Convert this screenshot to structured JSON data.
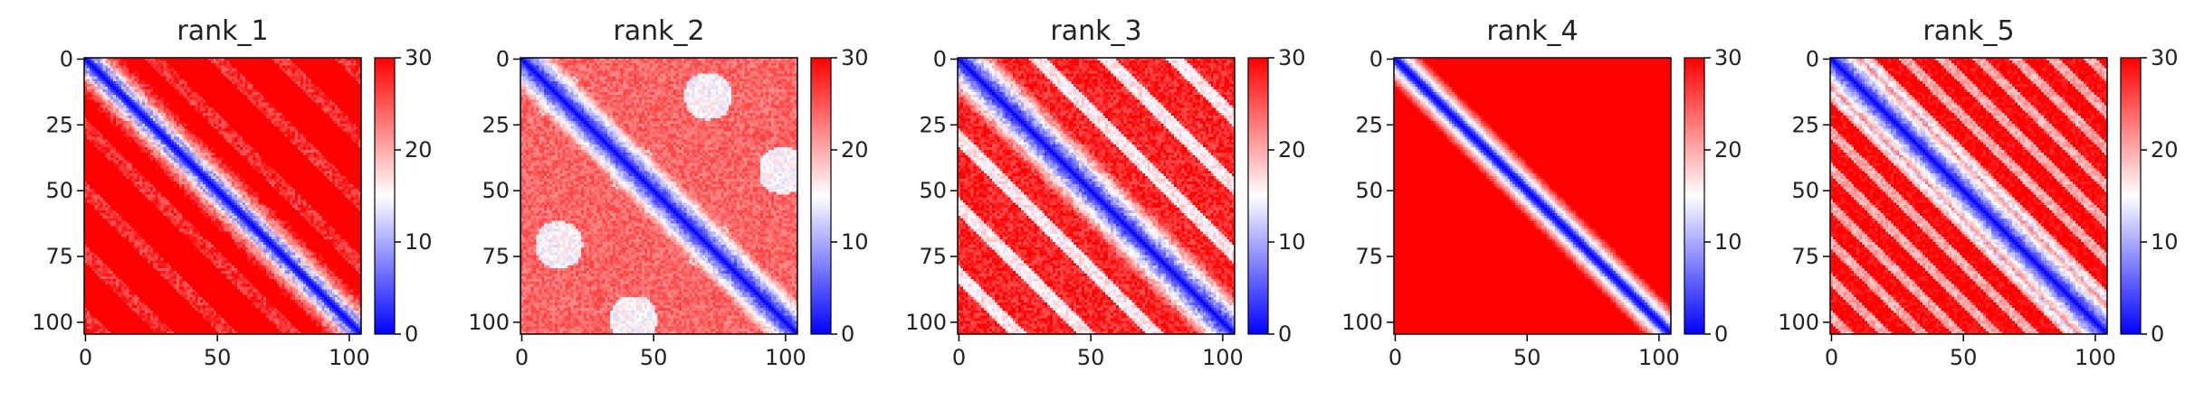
{
  "chart_data": [
    {
      "type": "heatmap",
      "title": "rank_1",
      "rows": 105,
      "cols": 105,
      "xticks": [
        0,
        50,
        100
      ],
      "yticks": [
        0,
        25,
        50,
        75,
        100
      ],
      "colorbar": {
        "ticks": [
          0,
          10,
          20,
          30
        ],
        "range": [
          0,
          30
        ]
      },
      "colormap": "bwr",
      "pattern": "diagonal with parallel low-distance bands, strong off-diagonal banding"
    },
    {
      "type": "heatmap",
      "title": "rank_2",
      "rows": 105,
      "cols": 105,
      "xticks": [
        0,
        50,
        100
      ],
      "yticks": [
        0,
        25,
        50,
        75,
        100
      ],
      "colorbar": {
        "ticks": [
          0,
          10,
          20,
          30
        ],
        "range": [
          0,
          30
        ]
      },
      "colormap": "bwr",
      "pattern": "strong diagonal, weaker off-diagonal blobs"
    },
    {
      "type": "heatmap",
      "title": "rank_3",
      "rows": 105,
      "cols": 105,
      "xticks": [
        0,
        50,
        100
      ],
      "yticks": [
        0,
        25,
        50,
        75,
        100
      ],
      "colorbar": {
        "ticks": [
          0,
          10,
          20,
          30
        ],
        "range": [
          0,
          30
        ]
      },
      "colormap": "bwr",
      "pattern": "strong diagonal with several off-diagonal bands"
    },
    {
      "type": "heatmap",
      "title": "rank_4",
      "rows": 105,
      "cols": 105,
      "xticks": [
        0,
        50,
        100
      ],
      "yticks": [
        0,
        25,
        50,
        75,
        100
      ],
      "colorbar": {
        "ticks": [
          0,
          10,
          20,
          30
        ],
        "range": [
          0,
          30
        ]
      },
      "colormap": "bwr",
      "pattern": "narrow diagonal only, rest mostly saturated red"
    },
    {
      "type": "heatmap",
      "title": "rank_5",
      "rows": 105,
      "cols": 105,
      "xticks": [
        0,
        50,
        100
      ],
      "yticks": [
        0,
        25,
        50,
        75,
        100
      ],
      "colorbar": {
        "ticks": [
          0,
          10,
          20,
          30
        ],
        "range": [
          0,
          30
        ]
      },
      "colormap": "bwr",
      "pattern": "diagonal with evenly spaced parallel stripes"
    }
  ],
  "colors": {
    "low": "#0000ff",
    "mid": "#ffffff",
    "high": "#ff0000",
    "axis": "#000000"
  }
}
